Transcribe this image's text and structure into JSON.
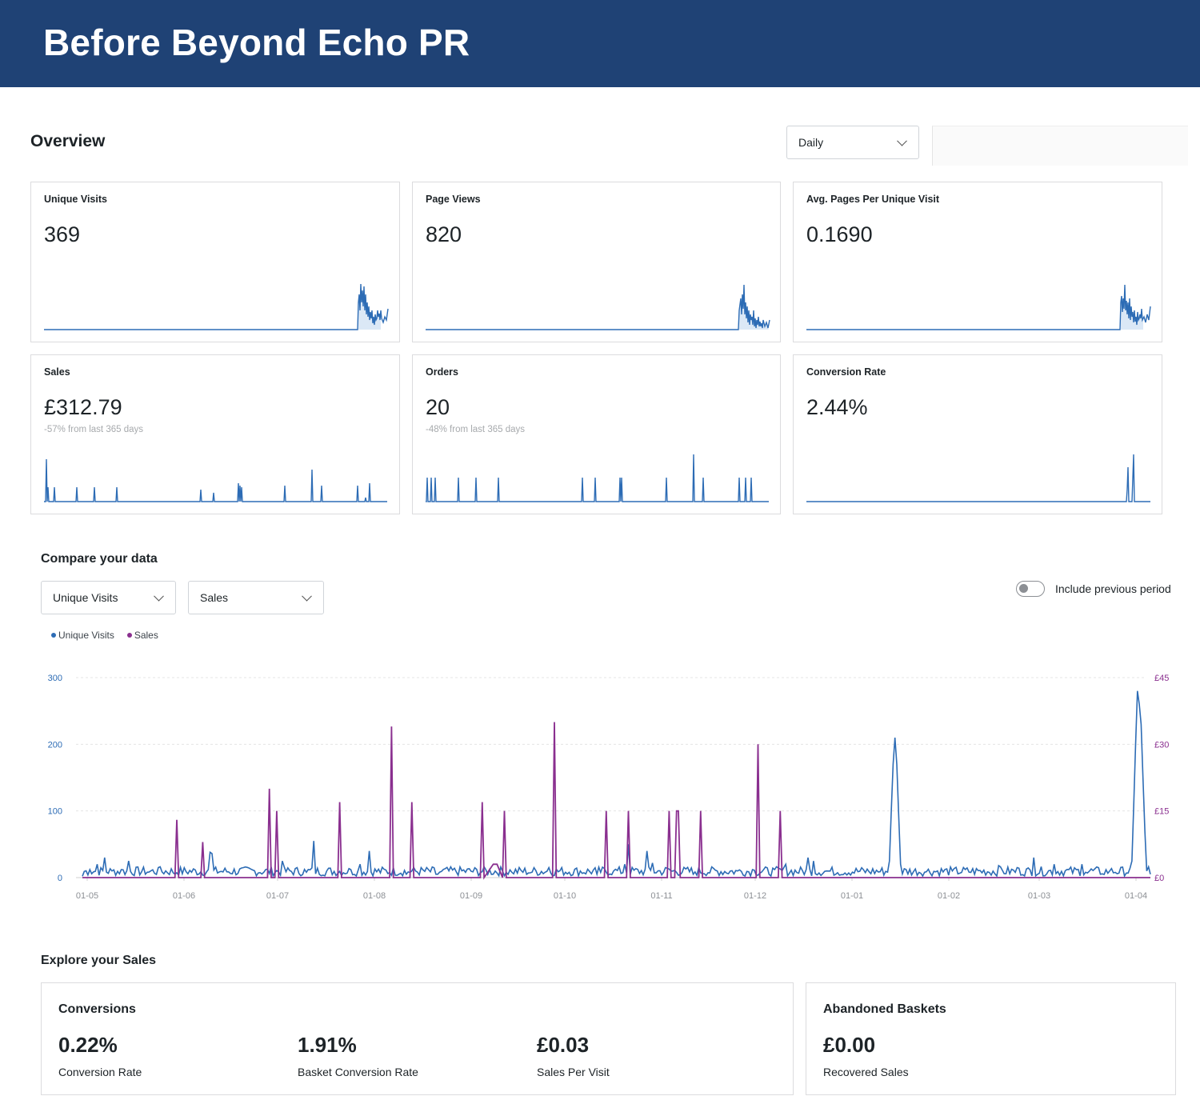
{
  "banner": {
    "title": "Before Beyond Echo PR"
  },
  "overview": {
    "title": "Overview",
    "period_select": "Daily"
  },
  "cards": [
    {
      "label": "Unique Visits",
      "value": "369",
      "delta": ""
    },
    {
      "label": "Page Views",
      "value": "820",
      "delta": ""
    },
    {
      "label": "Avg. Pages Per Unique Visit",
      "value": "0.1690",
      "delta": ""
    },
    {
      "label": "Sales",
      "value": "£312.79",
      "delta": "-57% from last 365 days"
    },
    {
      "label": "Orders",
      "value": "20",
      "delta": "-48% from last 365 days"
    },
    {
      "label": "Conversion Rate",
      "value": "2.44%",
      "delta": ""
    }
  ],
  "compare": {
    "title": "Compare your data",
    "select_a": "Unique Visits",
    "select_b": "Sales",
    "toggle_label": "Include previous period",
    "toggle_on": false
  },
  "colors": {
    "visits": "#2d6cb5",
    "sales": "#8a2f8f",
    "banner": "#1f4275"
  },
  "chart_data": {
    "type": "line",
    "legend": [
      "Unique Visits",
      "Sales"
    ],
    "x_ticks": [
      "01-05",
      "01-06",
      "01-07",
      "01-08",
      "01-09",
      "01-10",
      "01-11",
      "01-12",
      "01-01",
      "01-02",
      "01-03",
      "01-04"
    ],
    "y_left_ticks": [
      "0",
      "100",
      "200",
      "300"
    ],
    "y_right_ticks": [
      "£0",
      "£15",
      "£30",
      "£45"
    ],
    "y_left_range": [
      0,
      300
    ],
    "y_right_range": [
      0,
      45
    ],
    "grid": true,
    "series": [
      {
        "name": "Unique Visits",
        "axis": "left",
        "baseline": 8,
        "points": [
          [
            0,
            2
          ],
          [
            4,
            12
          ],
          [
            8,
            20
          ],
          [
            12,
            30
          ],
          [
            16,
            10
          ],
          [
            21,
            12
          ],
          [
            25,
            25
          ],
          [
            35,
            8
          ],
          [
            41,
            15
          ],
          [
            50,
            5
          ],
          [
            69,
            38
          ],
          [
            70,
            36
          ],
          [
            87,
            15
          ],
          [
            108,
            25
          ],
          [
            121,
            8
          ],
          [
            125,
            55
          ],
          [
            145,
            12
          ],
          [
            150,
            20
          ],
          [
            155,
            40
          ],
          [
            175,
            5
          ],
          [
            191,
            5
          ],
          [
            192,
            5
          ],
          [
            232,
            8
          ],
          [
            241,
            7
          ],
          [
            252,
            15
          ],
          [
            278,
            5
          ],
          [
            287,
            10
          ],
          [
            293,
            20
          ],
          [
            295,
            50
          ],
          [
            305,
            40
          ],
          [
            308,
            22
          ],
          [
            315,
            15
          ],
          [
            330,
            5
          ],
          [
            354,
            10
          ],
          [
            362,
            12
          ],
          [
            374,
            12
          ],
          [
            380,
            20
          ],
          [
            392,
            30
          ],
          [
            395,
            25
          ],
          [
            402,
            10
          ],
          [
            407,
            5
          ],
          [
            436,
            25
          ],
          [
            437,
            100
          ],
          [
            438,
            170
          ],
          [
            439,
            210
          ],
          [
            440,
            170
          ],
          [
            441,
            95
          ],
          [
            442,
            20
          ],
          [
            455,
            8
          ],
          [
            470,
            10
          ],
          [
            495,
            18
          ],
          [
            505,
            15
          ],
          [
            514,
            30
          ],
          [
            525,
            20
          ],
          [
            540,
            20
          ],
          [
            542,
            8
          ],
          [
            550,
            5
          ],
          [
            555,
            10
          ],
          [
            567,
            25
          ],
          [
            568,
            110
          ],
          [
            569,
            200
          ],
          [
            570,
            280
          ],
          [
            571,
            260
          ],
          [
            572,
            230
          ],
          [
            573,
            150
          ],
          [
            574,
            70
          ],
          [
            575,
            10
          ],
          [
            577,
            5
          ]
        ]
      },
      {
        "name": "Sales",
        "axis": "right",
        "baseline": 0,
        "points": [
          [
            50,
            0
          ],
          [
            51,
            13
          ],
          [
            52,
            0
          ],
          [
            64,
            0
          ],
          [
            65,
            8
          ],
          [
            66,
            0
          ],
          [
            100,
            0
          ],
          [
            101,
            20
          ],
          [
            102,
            0
          ],
          [
            104,
            0
          ],
          [
            105,
            15
          ],
          [
            106,
            0
          ],
          [
            138,
            0
          ],
          [
            139,
            17
          ],
          [
            140,
            0
          ],
          [
            166,
            0
          ],
          [
            167,
            34
          ],
          [
            168,
            0
          ],
          [
            177,
            0
          ],
          [
            178,
            17
          ],
          [
            179,
            0
          ],
          [
            215,
            0
          ],
          [
            216,
            17
          ],
          [
            217,
            0
          ],
          [
            222,
            3
          ],
          [
            223,
            3
          ],
          [
            224,
            3
          ],
          [
            227,
            0
          ],
          [
            228,
            15
          ],
          [
            229,
            0
          ],
          [
            254,
            0
          ],
          [
            255,
            35
          ],
          [
            256,
            0
          ],
          [
            282,
            0
          ],
          [
            283,
            15
          ],
          [
            284,
            0
          ],
          [
            294,
            0
          ],
          [
            295,
            15
          ],
          [
            296,
            0
          ],
          [
            316,
            0
          ],
          [
            317,
            15
          ],
          [
            318,
            0
          ],
          [
            320,
            0
          ],
          [
            321,
            15
          ],
          [
            322,
            15
          ],
          [
            323,
            0
          ],
          [
            333,
            0
          ],
          [
            334,
            15
          ],
          [
            335,
            0
          ],
          [
            364,
            0
          ],
          [
            365,
            30
          ],
          [
            366,
            0
          ],
          [
            376,
            0
          ],
          [
            377,
            15
          ],
          [
            378,
            0
          ]
        ]
      }
    ]
  },
  "explore": {
    "title": "Explore your Sales",
    "conversions": {
      "title": "Conversions",
      "metrics": [
        {
          "value": "0.22%",
          "label": "Conversion Rate"
        },
        {
          "value": "1.91%",
          "label": "Basket Conversion Rate"
        },
        {
          "value": "£0.03",
          "label": "Sales Per Visit"
        }
      ]
    },
    "abandoned": {
      "title": "Abandoned Baskets",
      "value": "£0.00",
      "label": "Recovered Sales"
    }
  }
}
